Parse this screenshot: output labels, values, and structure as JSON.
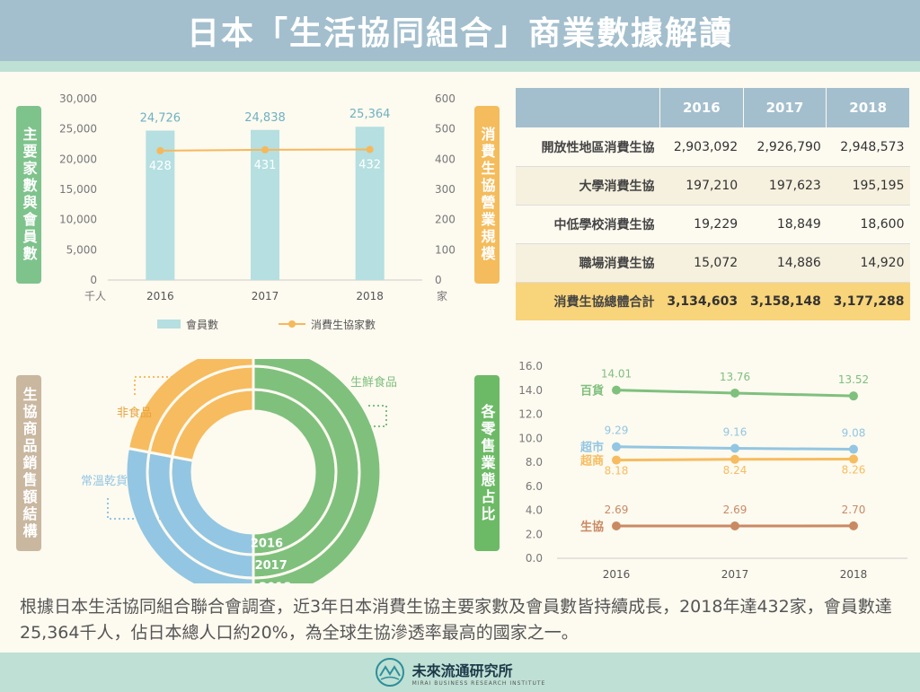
{
  "header": {
    "title": "日本「生活協同組合」商業數據解讀"
  },
  "labels": {
    "members": "主要家數與會員數",
    "scale": "消費生協營業規模",
    "sales": "生協商品銷售額結構",
    "retail": "各零售業態占比"
  },
  "colors": {
    "bar": "#b5dfe0",
    "line": "#f6b85a",
    "green": "#7fc07d",
    "blue": "#93c6e2",
    "orange": "#f7bc5f",
    "brown": "#c98a63",
    "headerBg": "#a3bfcd",
    "strip": "#bfe0d4",
    "label_members": "#7fc38c",
    "label_scale": "#f4bc5c",
    "label_sales": "#c9b7a0",
    "label_retail": "#6dba66"
  },
  "chart_data": [
    {
      "type": "bar",
      "categories": [
        "2016",
        "2017",
        "2018"
      ],
      "series": [
        {
          "name": "會員數",
          "values": [
            24726,
            24838,
            25364
          ],
          "axis": "left"
        },
        {
          "name": "消費生協家數",
          "values": [
            428,
            431,
            432
          ],
          "axis": "right",
          "type": "line"
        }
      ],
      "ylim": [
        0,
        30000
      ],
      "ylim_right": [
        0,
        600
      ],
      "yticks": [
        "0",
        "5,000",
        "10,000",
        "15,000",
        "20,000",
        "25,000",
        "30,000"
      ],
      "yticks_right": [
        "0",
        "100",
        "200",
        "300",
        "400",
        "500",
        "600"
      ],
      "value_labels": [
        "24,726",
        "24,838",
        "25,364"
      ],
      "line_labels": [
        "428",
        "431",
        "432"
      ],
      "y_unit": "千人",
      "y_unit_right": "家"
    },
    {
      "type": "table",
      "columns": [
        "",
        "2016",
        "2017",
        "2018"
      ],
      "rows": [
        [
          "開放性地區消費生協",
          "2,903,092",
          "2,926,790",
          "2,948,573"
        ],
        [
          "大學消費生協",
          "197,210",
          "197,623",
          "195,195"
        ],
        [
          "中低學校消費生協",
          "19,229",
          "18,849",
          "18,600"
        ],
        [
          "職場消費生協",
          "15,072",
          "14,886",
          "14,920"
        ],
        [
          "消費生協總體合計",
          "3,134,603",
          "3,158,148",
          "3,177,288"
        ]
      ]
    },
    {
      "type": "pie",
      "rings": [
        "2016",
        "2017",
        "2018"
      ],
      "categories": [
        "生鮮食品",
        "常溫乾貨",
        "非食品"
      ],
      "values": [
        [
          50,
          28,
          22
        ],
        [
          50,
          28,
          22
        ],
        [
          50,
          28,
          22
        ]
      ]
    },
    {
      "type": "line",
      "x": [
        "2016",
        "2017",
        "2018"
      ],
      "series": [
        {
          "name": "百貨",
          "values": [
            14.01,
            13.76,
            13.52
          ],
          "labels": [
            "14.01",
            "13.76",
            "13.52"
          ]
        },
        {
          "name": "超市",
          "values": [
            9.29,
            9.16,
            9.08
          ],
          "labels": [
            "9.29",
            "9.16",
            "9.08"
          ]
        },
        {
          "name": "超商",
          "values": [
            8.18,
            8.24,
            8.26
          ],
          "labels": [
            "8.18",
            "8.24",
            "8.26"
          ]
        },
        {
          "name": "生協",
          "values": [
            2.69,
            2.69,
            2.7
          ],
          "labels": [
            "2.69",
            "2.69",
            "2.70"
          ]
        }
      ],
      "ylim": [
        0,
        16
      ],
      "yticks": [
        "0.0",
        "2.0",
        "4.0",
        "6.0",
        "8.0",
        "10.0",
        "12.0",
        "14.0",
        "16.0"
      ]
    }
  ],
  "summary": "根據日本生活協同組合聯合會調查，近3年日本消費生協主要家數及會員數皆持續成長，2018年達432家，會員數達25,364千人，佔日本總人口約20%，為全球生協滲透率最高的國家之一。",
  "footer": {
    "logo_name": "未來流通研究所",
    "logo_sub": "MIRAI BUSINESS RESEARCH INSTITUTE"
  }
}
